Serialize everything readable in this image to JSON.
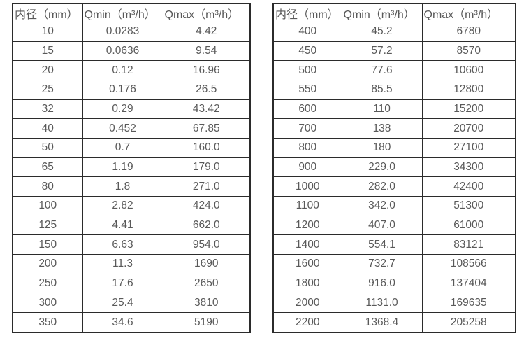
{
  "colors": {
    "text": "#595959",
    "border": "#2b2b2b",
    "background": "#ffffff"
  },
  "table_left": {
    "headers": [
      "内径（mm）",
      "Qmin（m³/h）",
      "Qmax（m³/h）"
    ],
    "rows": [
      [
        "10",
        "0.0283",
        "4.42"
      ],
      [
        "15",
        "0.0636",
        "9.54"
      ],
      [
        "20",
        "0.12",
        "16.96"
      ],
      [
        "25",
        "0.176",
        "26.5"
      ],
      [
        "32",
        "0.29",
        "43.42"
      ],
      [
        "40",
        "0.452",
        "67.85"
      ],
      [
        "50",
        "0.7",
        "160.0"
      ],
      [
        "65",
        "1.19",
        "179.0"
      ],
      [
        "80",
        "1.8",
        "271.0"
      ],
      [
        "100",
        "2.82",
        "424.0"
      ],
      [
        "125",
        "4.41",
        "662.0"
      ],
      [
        "150",
        "6.63",
        "954.0"
      ],
      [
        "200",
        "11.3",
        "1690"
      ],
      [
        "250",
        "17.6",
        "2650"
      ],
      [
        "300",
        "25.4",
        "3810"
      ],
      [
        "350",
        "34.6",
        "5190"
      ]
    ]
  },
  "table_right": {
    "headers": [
      "内径（mm）",
      "Qmin（m³/h）",
      "Qmax（m³/h）"
    ],
    "rows": [
      [
        "400",
        "45.2",
        "6780"
      ],
      [
        "450",
        "57.2",
        "8570"
      ],
      [
        "500",
        "77.6",
        "10600"
      ],
      [
        "550",
        "85.5",
        "12800"
      ],
      [
        "600",
        "110",
        "15200"
      ],
      [
        "700",
        "138",
        "20700"
      ],
      [
        "800",
        "180",
        "27100"
      ],
      [
        "900",
        "229.0",
        "34300"
      ],
      [
        "1000",
        "282.0",
        "42400"
      ],
      [
        "1100",
        "342.0",
        "51300"
      ],
      [
        "1200",
        "407.0",
        "61000"
      ],
      [
        "1400",
        "554.1",
        "83121"
      ],
      [
        "1600",
        "732.7",
        "108566"
      ],
      [
        "1800",
        "916.0",
        "137404"
      ],
      [
        "2000",
        "1131.0",
        "169635"
      ],
      [
        "2200",
        "1368.4",
        "205258"
      ]
    ]
  }
}
